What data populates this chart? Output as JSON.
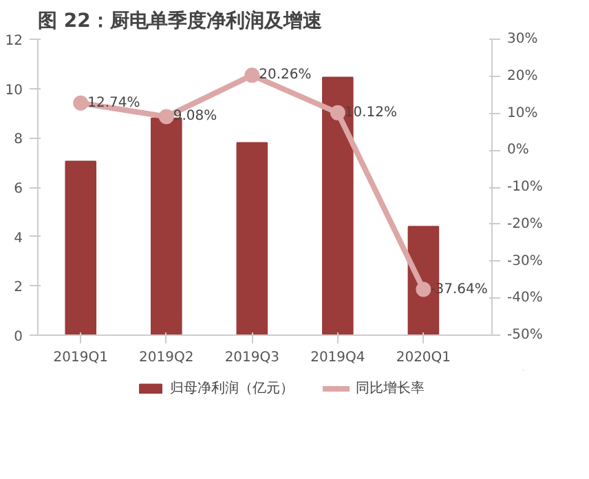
{
  "chart_data": {
    "type": "bar",
    "title": "图 22：厨电单季度净利润及增速",
    "categories": [
      "2019Q1",
      "2019Q2",
      "2019Q3",
      "2019Q4",
      "2020Q1"
    ],
    "series": [
      {
        "name": "归母净利润（亿元）",
        "color": "#9b3b3a",
        "values": [
          7.05,
          8.8,
          7.8,
          10.45,
          4.4
        ]
      },
      {
        "name": "同比增长率",
        "type": "line",
        "axis": "y2",
        "color": "#dca7a6",
        "marker": "circle",
        "values": [
          12.74,
          9.08,
          20.26,
          10.12,
          -37.64
        ],
        "value_labels": [
          "12.74%",
          "9.08%",
          "20.26%",
          "10.12%",
          "-37.64%"
        ]
      }
    ],
    "ylim": [
      0,
      12
    ],
    "yticks": [
      0,
      2,
      4,
      6,
      8,
      10,
      12
    ],
    "y2lim": [
      -50,
      30
    ],
    "y2ticks": [
      {
        "value": -50,
        "label": "-50%"
      },
      {
        "value": -40,
        "label": "-40%"
      },
      {
        "value": -30,
        "label": "-30%"
      },
      {
        "value": -20,
        "label": "-20%"
      },
      {
        "value": -10,
        "label": "-10%"
      },
      {
        "value": 0,
        "label": "0%"
      },
      {
        "value": 10,
        "label": "10%"
      },
      {
        "value": 20,
        "label": "20%"
      },
      {
        "value": 30,
        "label": "30%"
      }
    ],
    "grid": false,
    "legend": "bottom"
  }
}
